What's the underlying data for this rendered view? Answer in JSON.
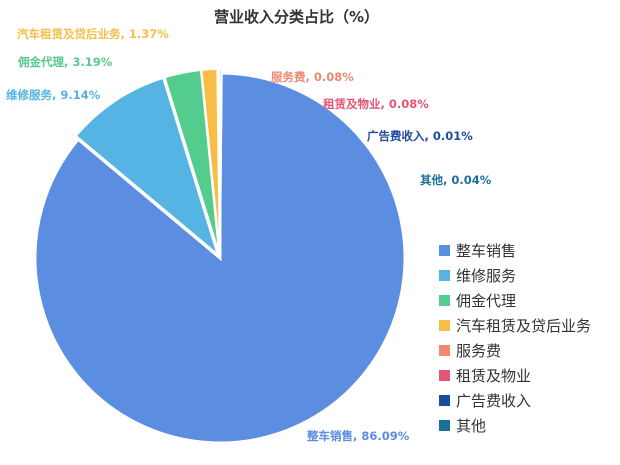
{
  "chart_data": {
    "type": "pie",
    "title": "营业收入分类占比（%）",
    "legend_position": "right",
    "slices": [
      {
        "name": "整车销售",
        "value": 86.09,
        "label": "整车销售, 86.09%",
        "color": "#5b8ee0"
      },
      {
        "name": "维修服务",
        "value": 9.14,
        "label": "维修服务, 9.14%",
        "color": "#55b4e4"
      },
      {
        "name": "佣金代理",
        "value": 3.19,
        "label": "佣金代理, 3.19%",
        "color": "#54cc8e"
      },
      {
        "name": "汽车租赁及贷后业务",
        "value": 1.37,
        "label": "汽车租赁及贷后业务, 1.37%",
        "color": "#f8bd47"
      },
      {
        "name": "服务费",
        "value": 0.08,
        "label": "服务费, 0.08%",
        "color": "#ef8a6e"
      },
      {
        "name": "租赁及物业",
        "value": 0.08,
        "label": "租赁及物业, 0.08%",
        "color": "#e45672"
      },
      {
        "name": "广告费收入",
        "value": 0.01,
        "label": "广告费收入, 0.01%",
        "color": "#1f4b9c"
      },
      {
        "name": "其他",
        "value": 0.04,
        "label": "其他, 0.04%",
        "color": "#1d6f9b"
      }
    ]
  }
}
